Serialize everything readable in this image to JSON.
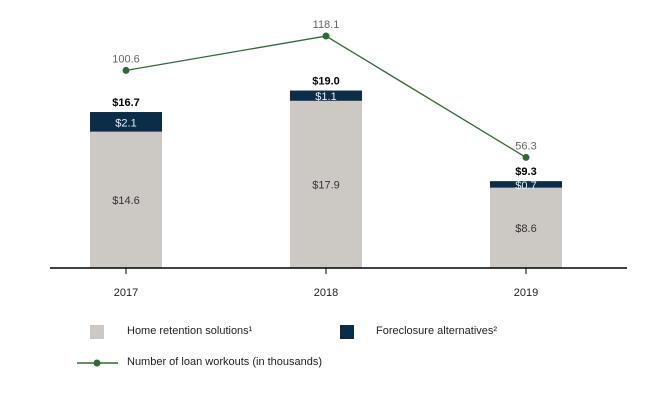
{
  "chart_data": {
    "type": "bar",
    "stacked": true,
    "categories": [
      "2017",
      "2018",
      "2019"
    ],
    "series": [
      {
        "name": "Home retention solutions¹",
        "values": [
          14.6,
          17.9,
          8.6
        ],
        "labels": [
          "$14.6",
          "$17.9",
          "$8.6"
        ],
        "color": "#ccc9c4"
      },
      {
        "name": "Foreclosure alternatives²",
        "values": [
          2.1,
          1.1,
          0.7
        ],
        "labels": [
          "$2.1",
          "$1.1",
          "$0.7"
        ],
        "color": "#0c2d48"
      }
    ],
    "totals": [
      16.7,
      19.0,
      9.3
    ],
    "total_labels": [
      "$16.7",
      "$19.0",
      "$9.3"
    ],
    "line_series": {
      "name": "Number of loan workouts (in thousands)",
      "type": "line",
      "values": [
        100.6,
        118.1,
        56.3
      ],
      "labels": [
        "100.6",
        "118.1",
        "56.3"
      ],
      "color": "#2e6b34"
    },
    "grid": false,
    "legend_position": "bottom"
  }
}
